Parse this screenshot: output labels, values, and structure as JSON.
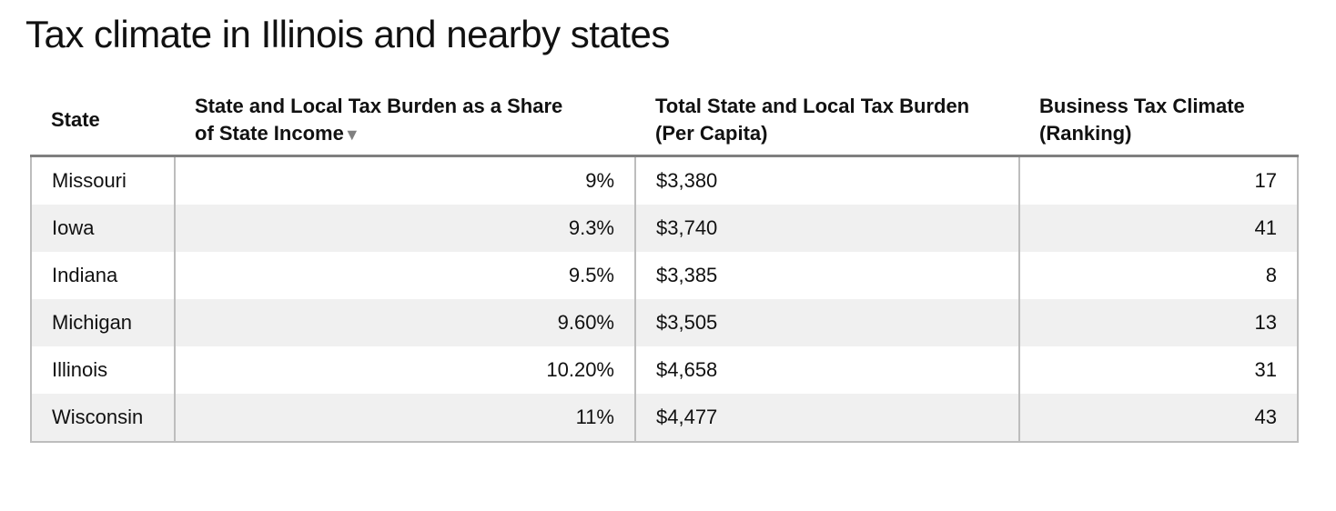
{
  "page": {
    "title": "Tax climate in Illinois and nearby states"
  },
  "chart_data": {
    "type": "table",
    "title": "Tax climate in Illinois and nearby states",
    "sorted_by": "State and Local Tax Burden as a Share of State Income",
    "sort_direction": "descending-indicator",
    "columns": [
      {
        "label": "State"
      },
      {
        "label_line1": "State and Local Tax Burden as a Share",
        "label_line2": "of State Income",
        "sort_indicator": "▼"
      },
      {
        "label_line1": "Total State and Local Tax Burden",
        "label_line2": "(Per Capita)"
      },
      {
        "label_line1": "Business Tax Climate",
        "label_line2": "(Ranking)"
      }
    ],
    "rows": [
      {
        "state": "Missouri",
        "share": "9%",
        "per_capita": "$3,380",
        "ranking": "17"
      },
      {
        "state": "Iowa",
        "share": "9.3%",
        "per_capita": "$3,740",
        "ranking": "41"
      },
      {
        "state": "Indiana",
        "share": "9.5%",
        "per_capita": "$3,385",
        "ranking": "8"
      },
      {
        "state": "Michigan",
        "share": "9.60%",
        "per_capita": "$3,505",
        "ranking": "13"
      },
      {
        "state": "Illinois",
        "share": "10.20%",
        "per_capita": "$4,658",
        "ranking": "31"
      },
      {
        "state": "Wisconsin",
        "share": "11%",
        "per_capita": "$4,477",
        "ranking": "43"
      }
    ]
  },
  "colors": {
    "header_rule": "#7f7f7f",
    "cell_border": "#bdbdbd",
    "stripe": "#f0f0f0",
    "sort_arrow": "#808080",
    "text": "#111111"
  }
}
